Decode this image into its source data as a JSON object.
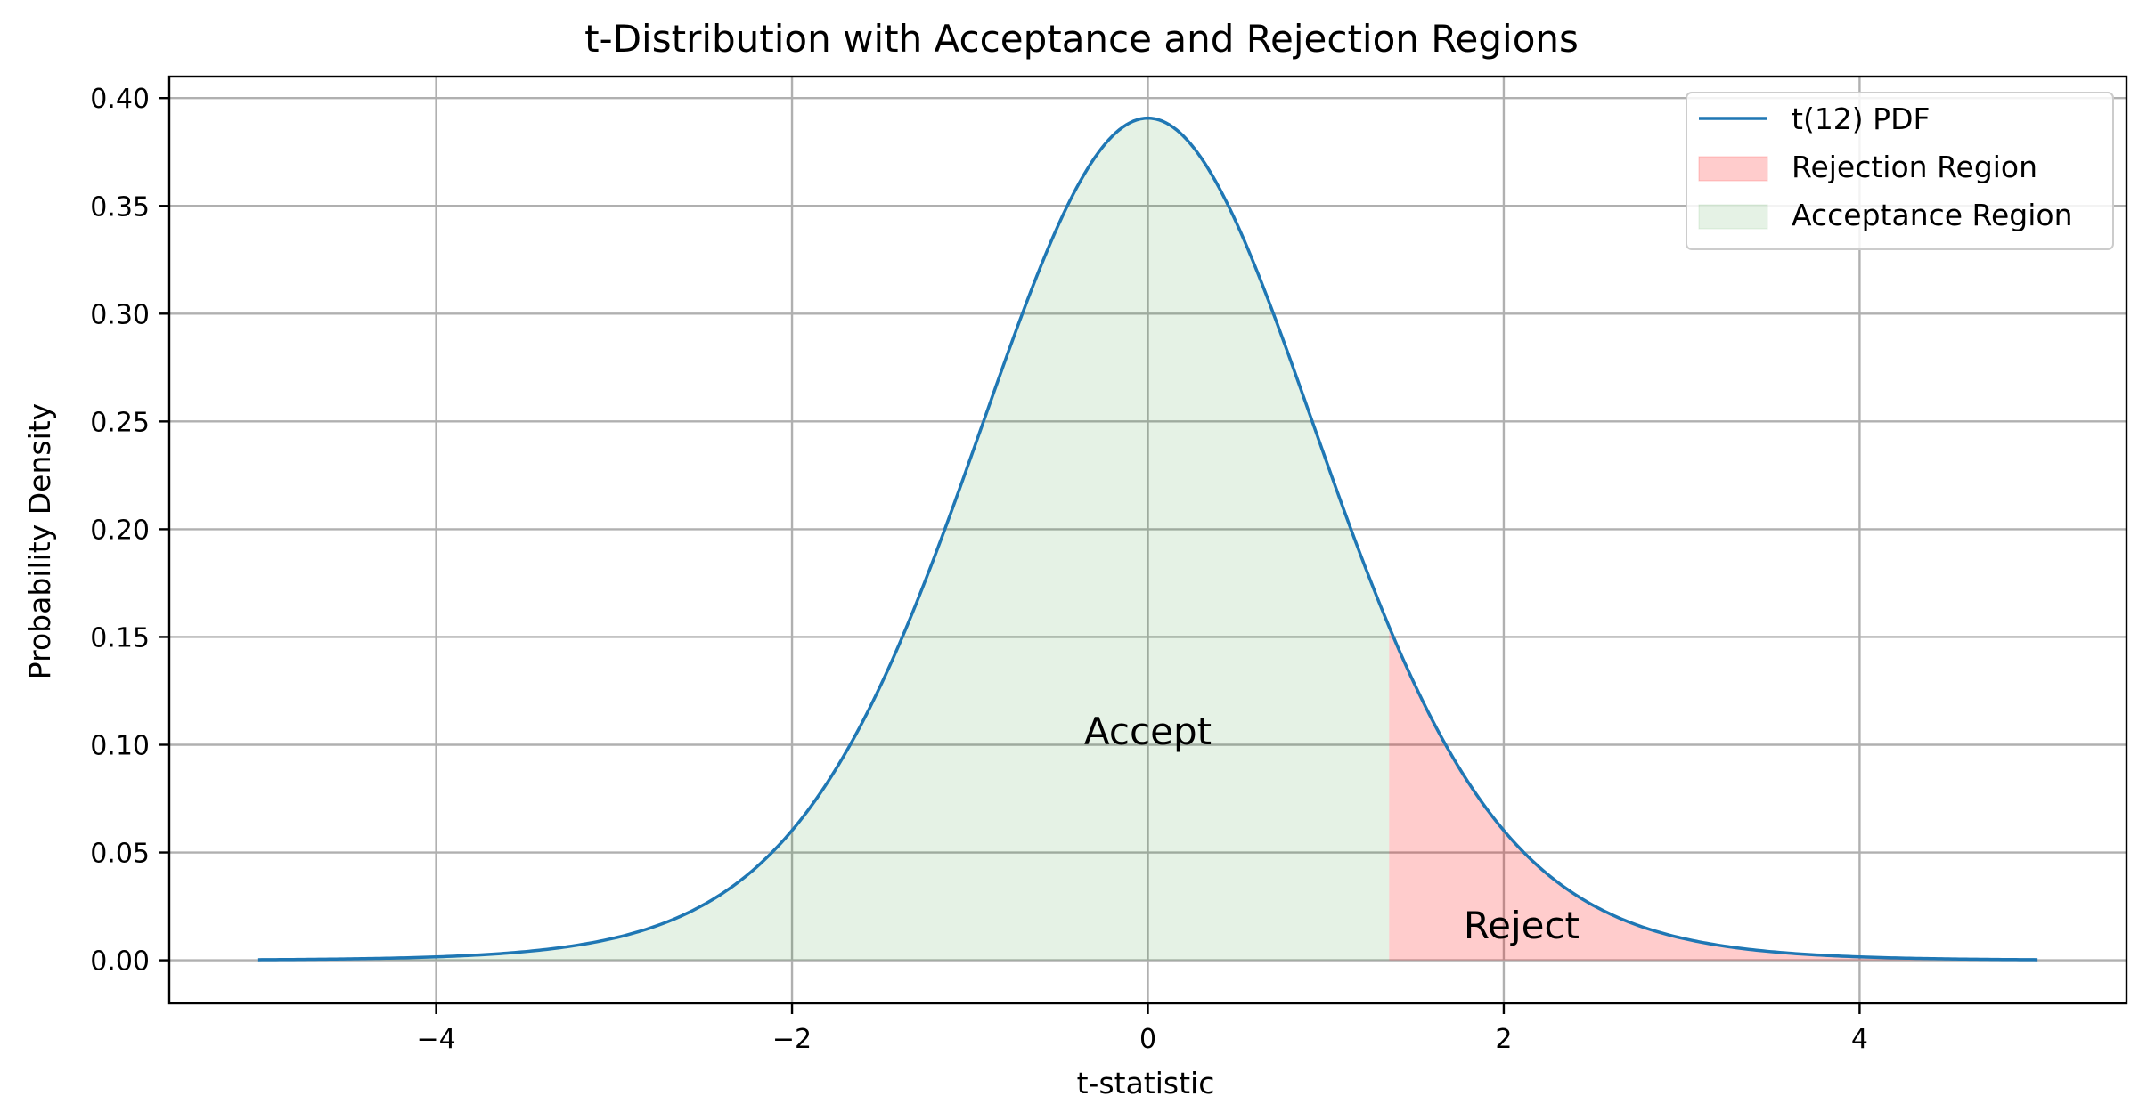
{
  "chart_data": {
    "type": "area",
    "title": "t-Distribution with Acceptance and Rejection Regions",
    "xlabel": "t-statistic",
    "ylabel": "Probability Density",
    "xlim": [
      -5.5,
      5.5
    ],
    "ylim": [
      -0.02,
      0.41
    ],
    "x_ticks": [
      -4,
      -2,
      0,
      2,
      4
    ],
    "x_tick_labels": [
      "−4",
      "−2",
      "0",
      "2",
      "4"
    ],
    "y_ticks": [
      0,
      0.05,
      0.1,
      0.15,
      0.2,
      0.25,
      0.3,
      0.35,
      0.4
    ],
    "y_tick_labels": [
      "0.00",
      "0.05",
      "0.10",
      "0.15",
      "0.20",
      "0.25",
      "0.30",
      "0.35",
      "0.40"
    ],
    "grid": true,
    "legend_position": "top-right",
    "distribution": {
      "degrees_of_freedom": 12,
      "x_range": [
        -5,
        5
      ]
    },
    "critical_value": 1.356,
    "series": [
      {
        "name": "t(12) PDF",
        "kind": "line",
        "color": "#1f77b4"
      },
      {
        "name": "Rejection Region",
        "kind": "fill",
        "color": "#ff0000",
        "opacity": 0.2,
        "range": [
          1.356,
          5
        ]
      },
      {
        "name": "Acceptance Region",
        "kind": "fill",
        "color": "#008000",
        "opacity": 0.1,
        "range": [
          -5,
          1.356
        ]
      }
    ],
    "annotations": [
      {
        "text": "Accept",
        "x": 0,
        "y": 0.105
      },
      {
        "text": "Reject",
        "x": 2.1,
        "y": 0.015
      }
    ]
  }
}
